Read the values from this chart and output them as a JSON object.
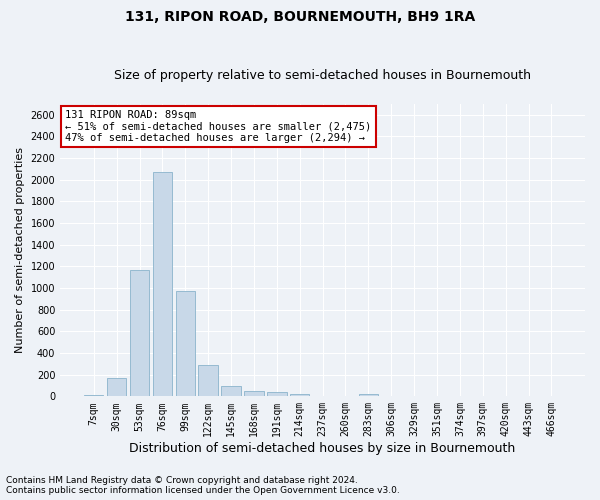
{
  "title": "131, RIPON ROAD, BOURNEMOUTH, BH9 1RA",
  "subtitle": "Size of property relative to semi-detached houses in Bournemouth",
  "xlabel": "Distribution of semi-detached houses by size in Bournemouth",
  "ylabel": "Number of semi-detached properties",
  "categories": [
    "7sqm",
    "30sqm",
    "53sqm",
    "76sqm",
    "99sqm",
    "122sqm",
    "145sqm",
    "168sqm",
    "191sqm",
    "214sqm",
    "237sqm",
    "260sqm",
    "283sqm",
    "306sqm",
    "329sqm",
    "351sqm",
    "374sqm",
    "397sqm",
    "420sqm",
    "443sqm",
    "466sqm"
  ],
  "values": [
    15,
    165,
    1165,
    2075,
    975,
    285,
    100,
    45,
    40,
    25,
    0,
    0,
    25,
    0,
    0,
    0,
    0,
    0,
    0,
    0,
    0
  ],
  "bar_color": "#c8d8e8",
  "bar_edge_color": "#8ab4cc",
  "annotation_text": "131 RIPON ROAD: 89sqm\n← 51% of semi-detached houses are smaller (2,475)\n47% of semi-detached houses are larger (2,294) →",
  "annotation_box_color": "#ffffff",
  "annotation_box_edge_color": "#cc0000",
  "property_bin_index": 4,
  "ylim": [
    0,
    2700
  ],
  "yticks": [
    0,
    200,
    400,
    600,
    800,
    1000,
    1200,
    1400,
    1600,
    1800,
    2000,
    2200,
    2400,
    2600
  ],
  "background_color": "#eef2f7",
  "grid_color": "#ffffff",
  "footer_line1": "Contains HM Land Registry data © Crown copyright and database right 2024.",
  "footer_line2": "Contains public sector information licensed under the Open Government Licence v3.0.",
  "title_fontsize": 10,
  "subtitle_fontsize": 9,
  "xlabel_fontsize": 9,
  "ylabel_fontsize": 8,
  "tick_fontsize": 7,
  "annotation_fontsize": 7.5,
  "footer_fontsize": 6.5
}
